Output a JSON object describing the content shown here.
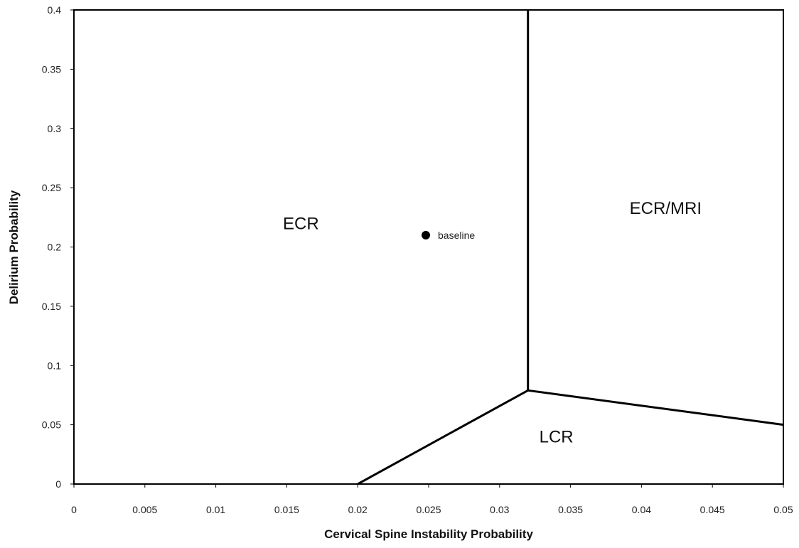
{
  "chart_data": {
    "type": "line",
    "title": "",
    "xlabel": "Cervical Spine Instability Probability",
    "ylabel": "Delirium Probability",
    "xlim": [
      0,
      0.05
    ],
    "ylim": [
      0,
      0.4
    ],
    "xticks": [
      "0",
      "0.005",
      "0.01",
      "0.015",
      "0.02",
      "0.025",
      "0.03",
      "0.035",
      "0.04",
      "0.045",
      "0.05"
    ],
    "yticks": [
      "0",
      "0.05",
      "0.1",
      "0.15",
      "0.2",
      "0.25",
      "0.3",
      "0.35",
      "0.4"
    ],
    "grid": false,
    "boundaries": [
      {
        "points": [
          [
            0.032,
            0.4
          ],
          [
            0.032,
            0.079
          ]
        ]
      },
      {
        "points": [
          [
            0.02,
            0.0
          ],
          [
            0.032,
            0.079
          ]
        ]
      },
      {
        "points": [
          [
            0.032,
            0.079
          ],
          [
            0.05,
            0.05
          ]
        ]
      }
    ],
    "regions": [
      {
        "label": "ECR",
        "x": 0.016,
        "y": 0.215
      },
      {
        "label": "ECR/MRI",
        "x": 0.0417,
        "y": 0.228
      },
      {
        "label": "LCR",
        "x": 0.034,
        "y": 0.035
      }
    ],
    "points": [
      {
        "label": "baseline",
        "x": 0.0248,
        "y": 0.21
      }
    ]
  }
}
